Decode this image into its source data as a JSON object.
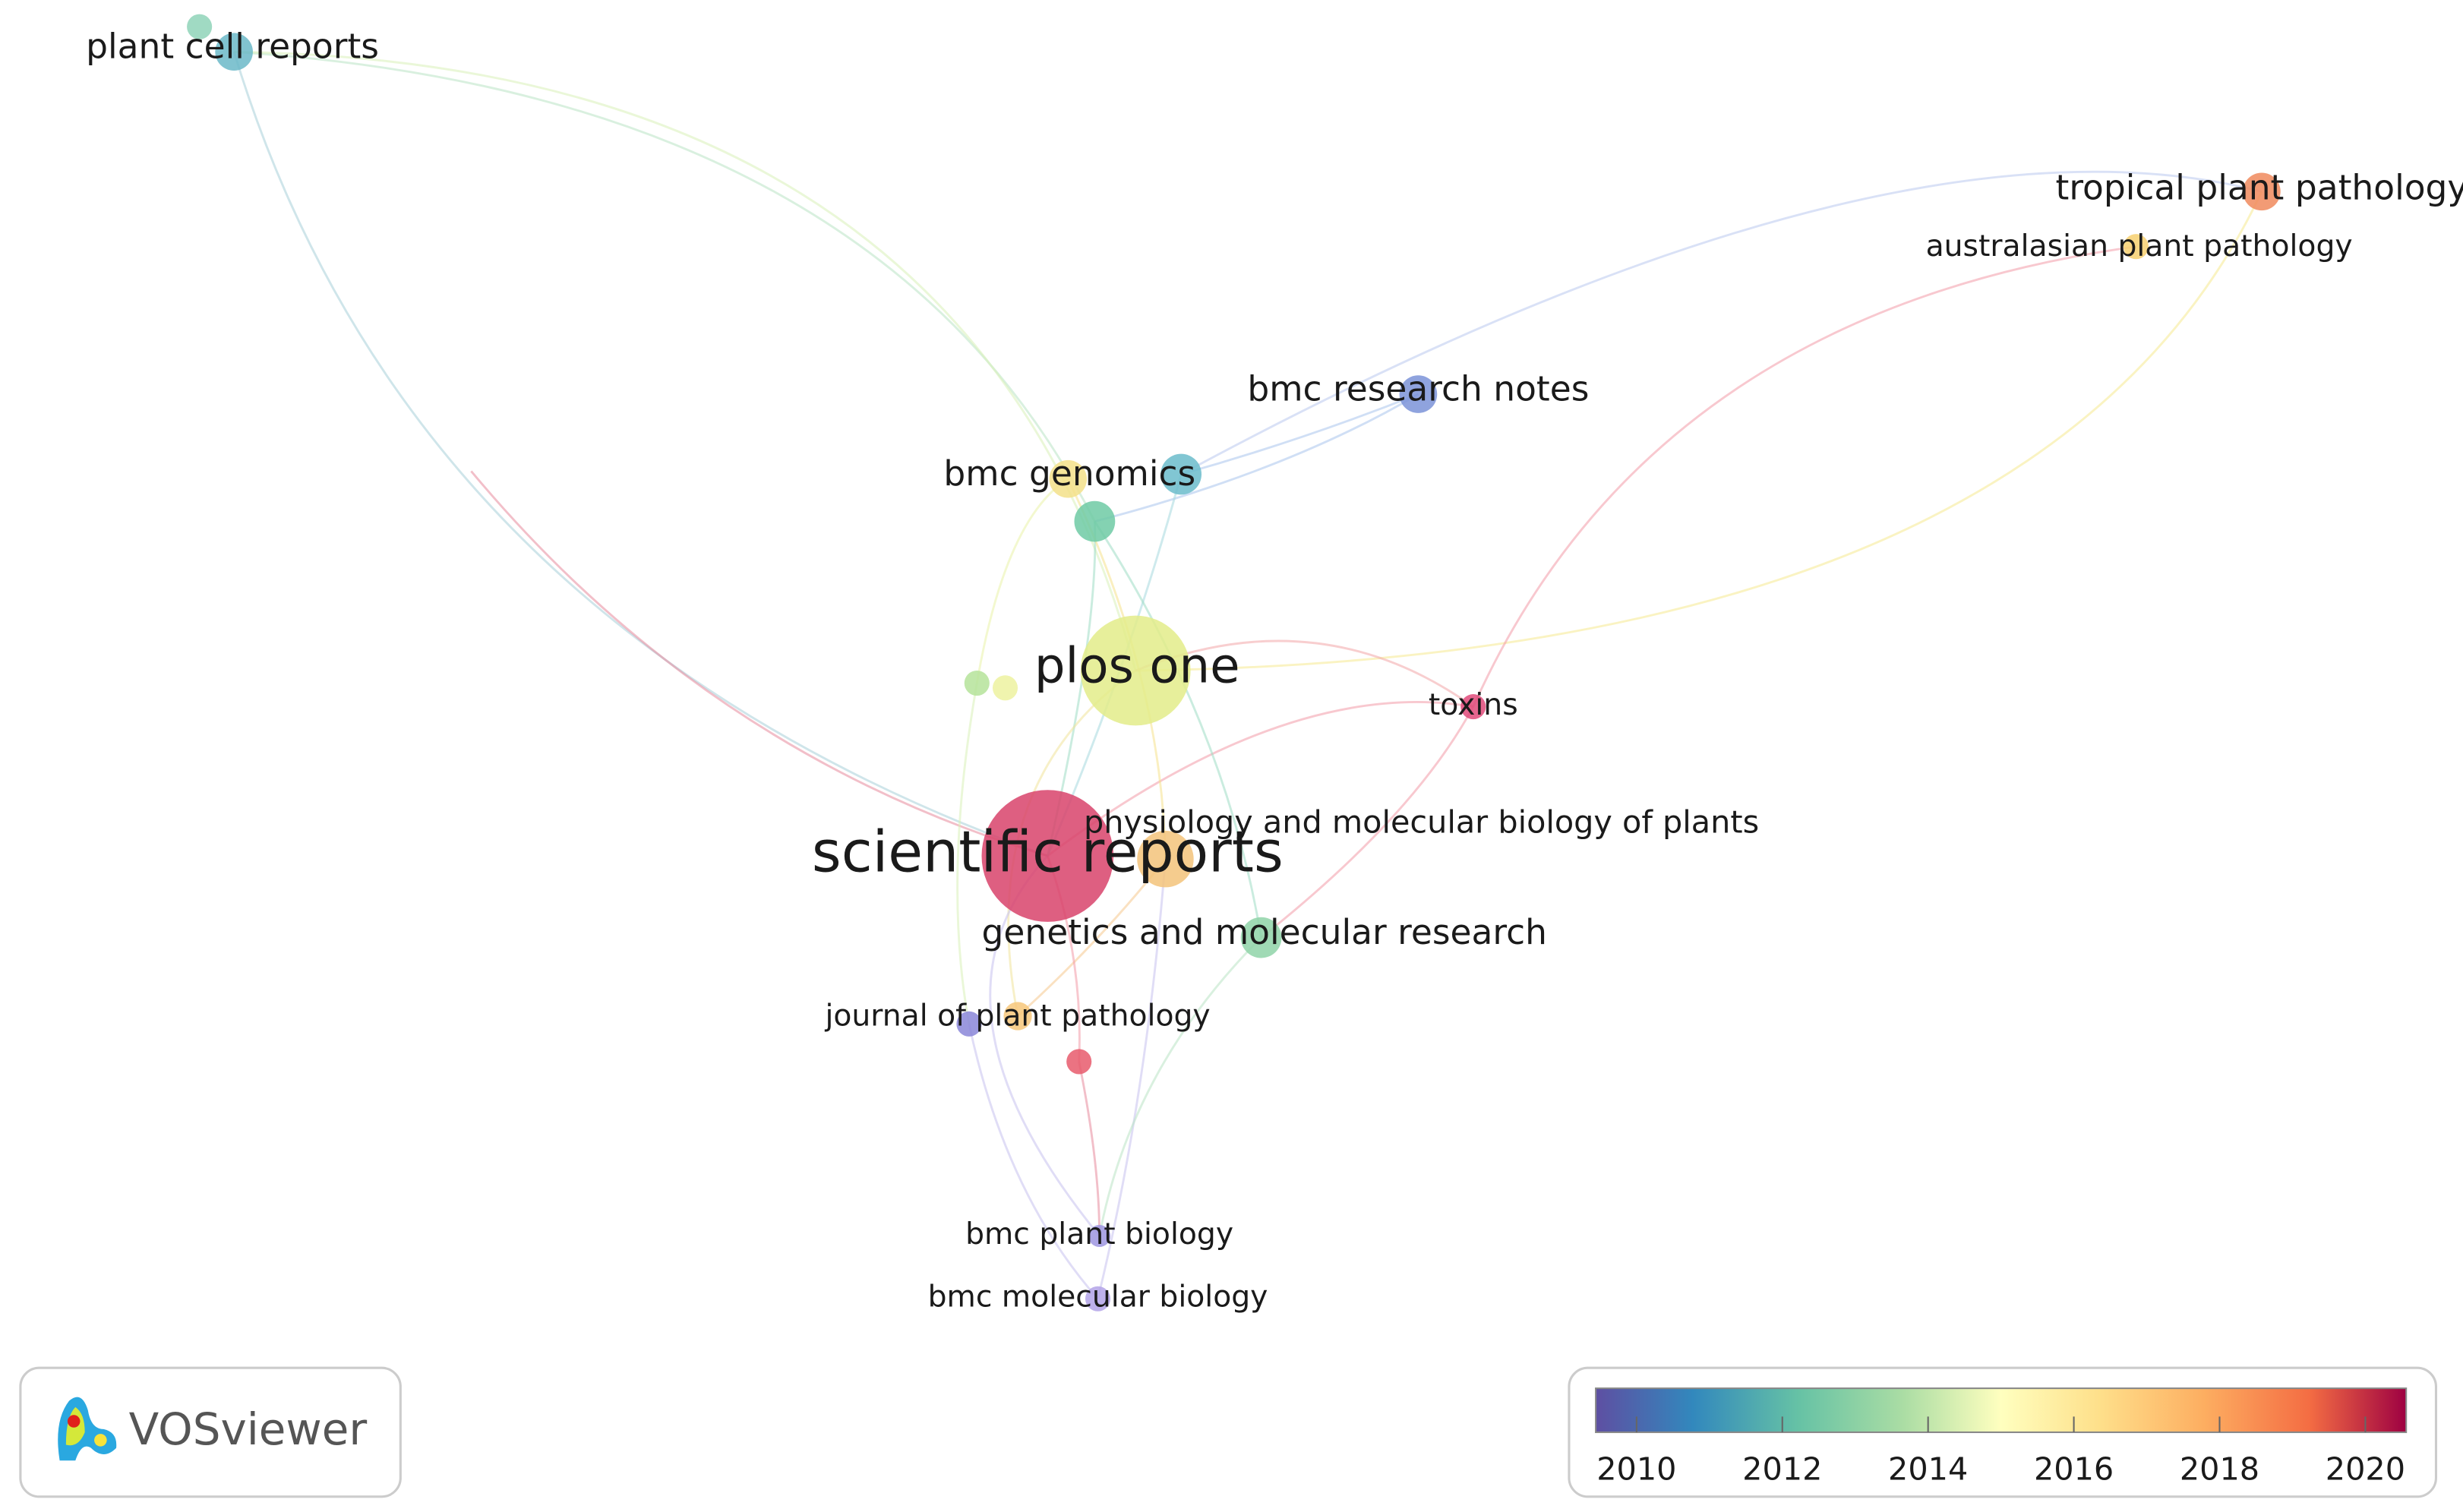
{
  "nodes": [
    {
      "label": "plant cell reports"
    },
    {
      "label": "tropical plant pathology"
    },
    {
      "label": "australasian plant pathology"
    },
    {
      "label": "bmc research notes"
    },
    {
      "label": "bmc genomics"
    },
    {
      "label": "plos one"
    },
    {
      "label": "toxins"
    },
    {
      "label": "scientific reports"
    },
    {
      "label": "physiology and molecular biology of plants"
    },
    {
      "label": "genetics and molecular research"
    },
    {
      "label": "journal of plant pathology"
    },
    {
      "label": "bmc plant biology"
    },
    {
      "label": "bmc molecular biology"
    }
  ],
  "logo": {
    "text": "VOSviewer"
  },
  "legend": {
    "ticks": [
      2010,
      2012,
      2014,
      2016,
      2018,
      2020
    ]
  }
}
